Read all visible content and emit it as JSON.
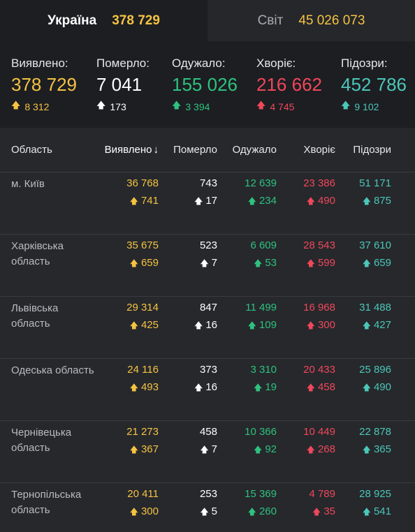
{
  "tabs": [
    {
      "label": "Україна",
      "value": "378 729"
    },
    {
      "label": "Світ",
      "value": "45 026 073"
    }
  ],
  "summary": [
    {
      "label": "Виявлено:",
      "value": "378 729",
      "delta": "8 312"
    },
    {
      "label": "Померло:",
      "value": "7 041",
      "delta": "173"
    },
    {
      "label": "Одужало:",
      "value": "155 026",
      "delta": "3 394"
    },
    {
      "label": "Хворіє:",
      "value": "216 662",
      "delta": "4 745"
    },
    {
      "label": "Підозри:",
      "value": "452 786",
      "delta": "9 102"
    }
  ],
  "table": {
    "headers": [
      "Область",
      "Виявлено",
      "Померло",
      "Одужало",
      "Хворіє",
      "Підозри"
    ],
    "sort_arrow": "↓",
    "rows": [
      {
        "region": "м. Київ",
        "detected": "36 768",
        "detected_d": "741",
        "died": "743",
        "died_d": "17",
        "recovered": "12 639",
        "recovered_d": "234",
        "sick": "23 386",
        "sick_d": "490",
        "suspected": "51 171",
        "suspected_d": "875"
      },
      {
        "region": "Харківська область",
        "detected": "35 675",
        "detected_d": "659",
        "died": "523",
        "died_d": "7",
        "recovered": "6 609",
        "recovered_d": "53",
        "sick": "28 543",
        "sick_d": "599",
        "suspected": "37 610",
        "suspected_d": "659"
      },
      {
        "region": "Львівська область",
        "detected": "29 314",
        "detected_d": "425",
        "died": "847",
        "died_d": "16",
        "recovered": "11 499",
        "recovered_d": "109",
        "sick": "16 968",
        "sick_d": "300",
        "suspected": "31 488",
        "suspected_d": "427"
      },
      {
        "region": "Одеська область",
        "detected": "24 116",
        "detected_d": "493",
        "died": "373",
        "died_d": "16",
        "recovered": "3 310",
        "recovered_d": "19",
        "sick": "20 433",
        "sick_d": "458",
        "suspected": "25 896",
        "suspected_d": "490"
      },
      {
        "region": "Чернівецька область",
        "detected": "21 273",
        "detected_d": "367",
        "died": "458",
        "died_d": "7",
        "recovered": "10 366",
        "recovered_d": "92",
        "sick": "10 449",
        "sick_d": "268",
        "suspected": "22 878",
        "suspected_d": "365"
      },
      {
        "region": "Тернопільська область",
        "detected": "20 411",
        "detected_d": "300",
        "died": "253",
        "died_d": "5",
        "recovered": "15 369",
        "recovered_d": "260",
        "sick": "4 789",
        "sick_d": "35",
        "suspected": "28 925",
        "suspected_d": "541"
      }
    ]
  },
  "colors": {
    "detected": "#f5c342",
    "died": "#ffffff",
    "recovered": "#2ec27e",
    "sick": "#f0475b",
    "suspected": "#4cc6b8"
  },
  "icons": {
    "delta": "arrow-up-icon",
    "sort": "sort-down-arrow"
  }
}
